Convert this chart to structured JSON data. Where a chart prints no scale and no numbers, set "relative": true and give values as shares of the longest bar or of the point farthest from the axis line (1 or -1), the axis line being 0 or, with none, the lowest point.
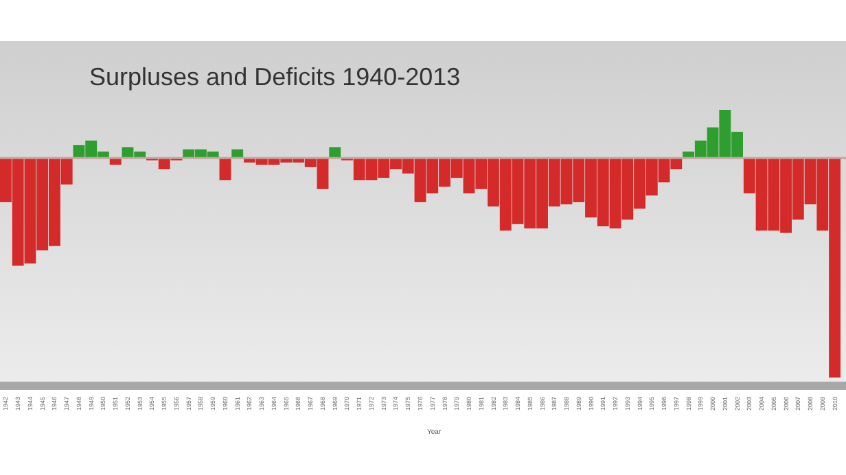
{
  "chart_data": {
    "type": "bar",
    "title": "Surpluses and Deficits 1940-2013",
    "xlabel": "Year",
    "relative": true,
    "categories": [
      "1942",
      "1943",
      "1944",
      "1945",
      "1946",
      "1947",
      "1948",
      "1949",
      "1950",
      "1951",
      "1952",
      "1953",
      "1954",
      "1955",
      "1956",
      "1957",
      "1958",
      "1959",
      "1960",
      "1961",
      "1962",
      "1963",
      "1964",
      "1965",
      "1966",
      "1967",
      "1968",
      "1969",
      "1970",
      "1971",
      "1972",
      "1973",
      "1974",
      "1975",
      "1976",
      "1977",
      "1978",
      "1979",
      "1980",
      "1981",
      "1982",
      "1983",
      "1984",
      "1985",
      "1986",
      "1987",
      "1988",
      "1989",
      "1990",
      "1991",
      "1992",
      "1993",
      "1994",
      "1995",
      "1996",
      "1997",
      "1998",
      "1999",
      "2000",
      "2001",
      "2002",
      "2003",
      "2004",
      "2005",
      "2006",
      "2007",
      "2008",
      "2009",
      "2010"
    ],
    "values": [
      -0.2,
      -0.49,
      -0.48,
      -0.42,
      -0.4,
      -0.12,
      0.06,
      0.08,
      0.03,
      -0.03,
      0.05,
      0.03,
      -0.01,
      -0.05,
      -0.01,
      0.04,
      0.04,
      0.03,
      -0.1,
      0.04,
      -0.02,
      -0.03,
      -0.03,
      -0.02,
      -0.02,
      -0.04,
      -0.14,
      0.05,
      -0.01,
      -0.1,
      -0.1,
      -0.09,
      -0.05,
      -0.07,
      -0.2,
      -0.16,
      -0.13,
      -0.09,
      -0.16,
      -0.14,
      -0.22,
      -0.33,
      -0.3,
      -0.32,
      -0.32,
      -0.22,
      -0.21,
      -0.2,
      -0.27,
      -0.31,
      -0.32,
      -0.28,
      -0.23,
      -0.17,
      -0.11,
      -0.05,
      0.03,
      0.08,
      0.14,
      0.22,
      0.12,
      -0.16,
      -0.33,
      -0.33,
      -0.34,
      -0.28,
      -0.21,
      -0.33,
      -1
    ],
    "colors": [
      "#d42a2a",
      "#d42a2a",
      "#d42a2a",
      "#d42a2a",
      "#d42a2a",
      "#d42a2a",
      "#2e9e2e",
      "#2e9e2e",
      "#2e9e2e",
      "#d42a2a",
      "#2e9e2e",
      "#2e9e2e",
      "#d42a2a",
      "#d42a2a",
      "#d42a2a",
      "#2e9e2e",
      "#2e9e2e",
      "#2e9e2e",
      "#d42a2a",
      "#2e9e2e",
      "#d42a2a",
      "#d42a2a",
      "#d42a2a",
      "#d42a2a",
      "#d42a2a",
      "#d42a2a",
      "#d42a2a",
      "#2e9e2e",
      "#d42a2a",
      "#d42a2a",
      "#d42a2a",
      "#d42a2a",
      "#d42a2a",
      "#d42a2a",
      "#d42a2a",
      "#d42a2a",
      "#d42a2a",
      "#d42a2a",
      "#d42a2a",
      "#d42a2a",
      "#d42a2a",
      "#d42a2a",
      "#d42a2a",
      "#d42a2a",
      "#d42a2a",
      "#d42a2a",
      "#d42a2a",
      "#d42a2a",
      "#d42a2a",
      "#d42a2a",
      "#d42a2a",
      "#d42a2a",
      "#d42a2a",
      "#d42a2a",
      "#d42a2a",
      "#d42a2a",
      "#2e9e2e",
      "#2e9e2e",
      "#2e9e2e",
      "#2e9e2e",
      "#2e9e2e",
      "#d42a2a",
      "#d42a2a",
      "#d42a2a",
      "#d42a2a",
      "#d42a2a",
      "#d42a2a",
      "#d42a2a",
      "#d42a2a"
    ]
  }
}
